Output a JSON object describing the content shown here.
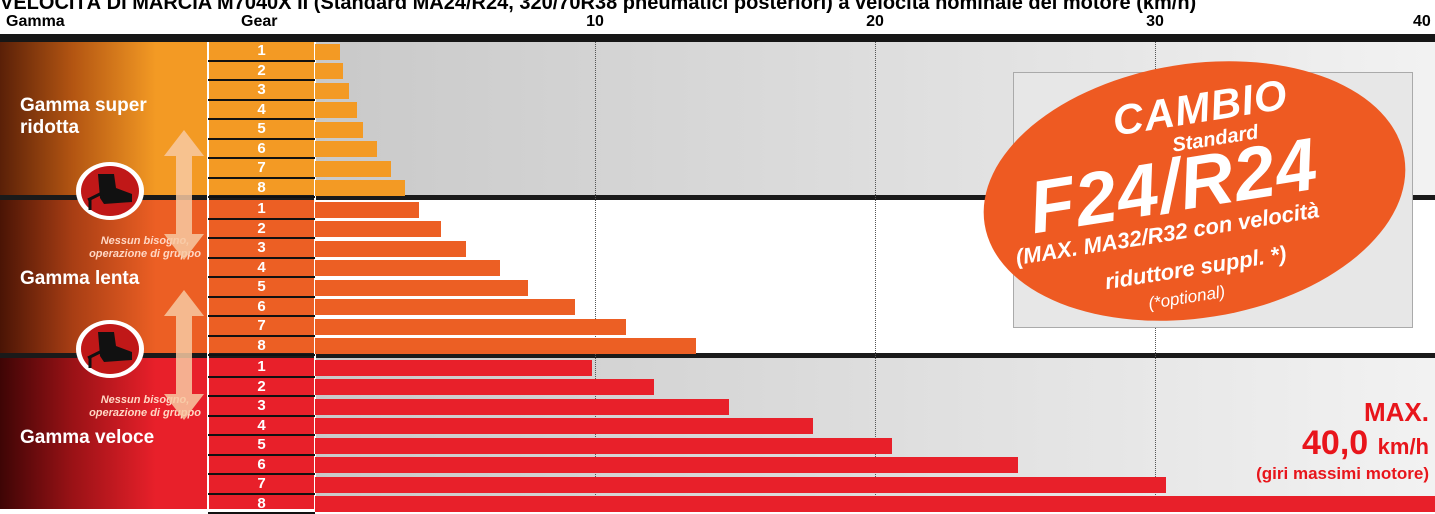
{
  "title": "VELOCITÀ DI MARCIA M7040X II (Standard MA24/R24, 320/70R38 pneumatici posteriori) a velocità nominale del motore (km/h)",
  "headers": {
    "range": "Gamma",
    "gear": "Gear"
  },
  "ranges": [
    {
      "label": "Gamma super\nridotta",
      "color": "#f39a24"
    },
    {
      "label": "Gamma lenta",
      "color": "#ec5f24"
    },
    {
      "label": "Gamma veloce",
      "color": "#e8202a"
    }
  ],
  "shift_notes": [
    "Nessun bisogno,\noperazione di gruppo",
    "Nessun bisogno,\noperazione di gruppo"
  ],
  "badge": {
    "word": "CAMBIO",
    "sub": "Standard",
    "code": "F24/R24",
    "line1": "(MAX. MA32/R32 con velocità",
    "line2": "riduttore suppl. *)",
    "optional": "(*optional)"
  },
  "max": {
    "label": "MAX.",
    "value": "40,0",
    "unit": "km/h",
    "note": "(giri massimi motore)"
  },
  "chart_data": {
    "type": "bar",
    "orientation": "horizontal",
    "title": "VELOCITÀ DI MARCIA M7040X II (Standard MA24/R24, 320/70R38 pneumatici posteriori) a velocità nominale del motore (km/h)",
    "xlim": [
      0,
      40
    ],
    "xticks": [
      10,
      20,
      30,
      40
    ],
    "grid": true,
    "categories": [
      "1",
      "2",
      "3",
      "4",
      "5",
      "6",
      "7",
      "8"
    ],
    "series": [
      {
        "name": "Gamma super ridotta",
        "color": "#f39a24",
        "values": [
          0.9,
          1.0,
          1.2,
          1.5,
          1.7,
          2.2,
          2.7,
          3.2
        ]
      },
      {
        "name": "Gamma lenta",
        "color": "#ec5f24",
        "values": [
          3.7,
          4.5,
          5.4,
          6.6,
          7.6,
          9.3,
          11.1,
          13.6
        ]
      },
      {
        "name": "Gamma veloce",
        "color": "#e8202a",
        "values": [
          9.9,
          12.1,
          14.8,
          17.8,
          20.6,
          25.1,
          30.4,
          40.0
        ]
      }
    ]
  }
}
